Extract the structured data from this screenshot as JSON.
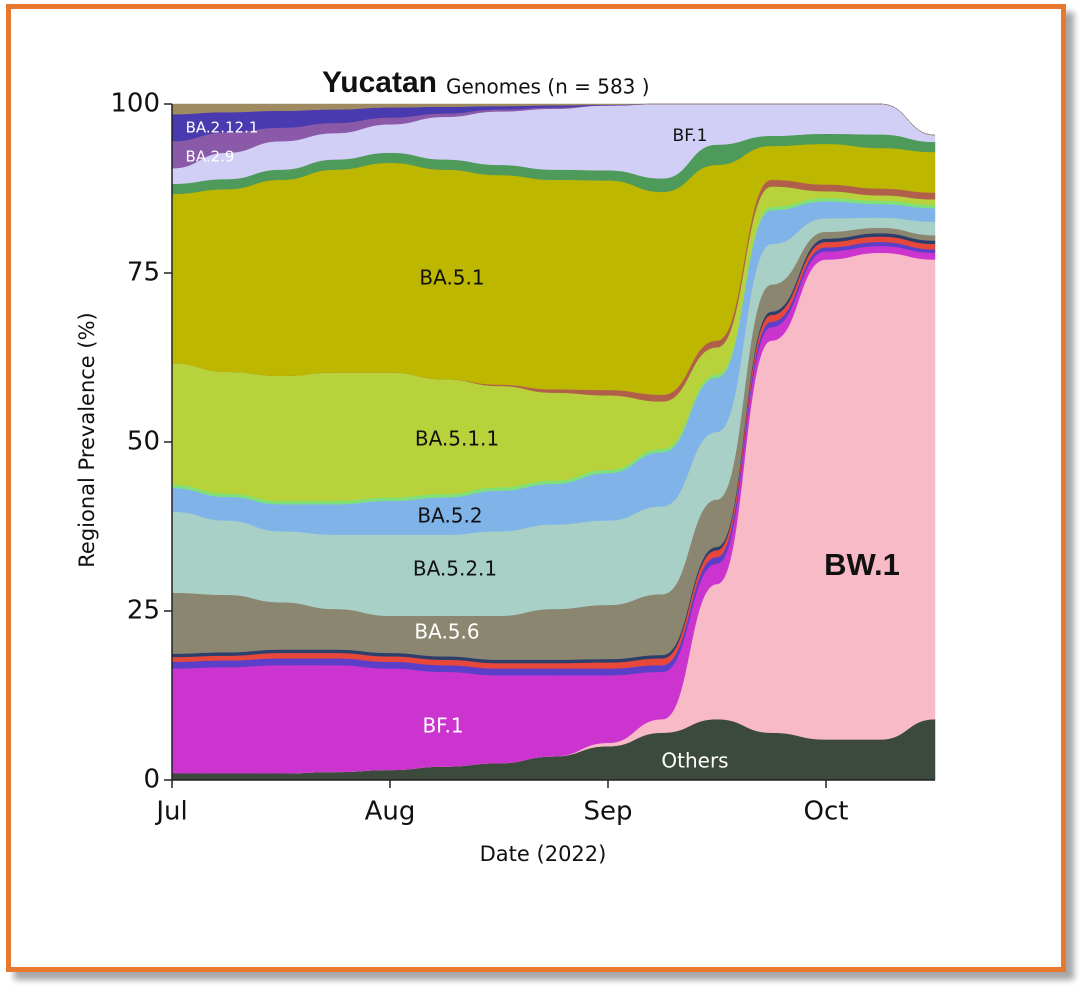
{
  "chart_data": {
    "type": "area",
    "stacked": true,
    "title": "Yucatan",
    "subtitle": "Genomes (n = 583 )",
    "x_label": "Date (2022)",
    "y_label": "Regional Prevalence (%)",
    "categories": [
      "Jul",
      null,
      null,
      null,
      "Aug",
      null,
      null,
      null,
      "Sep",
      null,
      null,
      null,
      "Oct",
      null,
      null
    ],
    "ylim": [
      0,
      100
    ],
    "yticks": [
      0,
      25,
      50,
      75,
      100
    ],
    "grid": false,
    "series": [
      {
        "name": "Others",
        "color": "#3b4a3d",
        "values": [
          1,
          1,
          1,
          1.2,
          1.5,
          2,
          2.5,
          3.5,
          5,
          7,
          9,
          7,
          6,
          6,
          9
        ]
      },
      {
        "name": "BW.1",
        "color": "#f8bac7",
        "values": [
          0,
          0,
          0,
          0,
          0,
          0,
          0,
          0,
          0.5,
          2,
          20,
          58,
          71,
          72,
          68
        ]
      },
      {
        "name": "BF.1",
        "color": "#cc34cf",
        "values": [
          15.5,
          15.7,
          16,
          15.8,
          15,
          14,
          13,
          12,
          10,
          7,
          3,
          2,
          1.2,
          1,
          1
        ]
      },
      {
        "color": "#5b3fc8",
        "values": [
          1,
          1,
          1,
          1,
          1,
          1,
          1,
          1,
          1,
          1,
          1,
          0.8,
          0.6,
          0.6,
          0.5
        ]
      },
      {
        "color": "#e8483a",
        "values": [
          0.7,
          0.7,
          0.8,
          0.8,
          0.8,
          0.8,
          0.8,
          0.8,
          0.9,
          1,
          1,
          1,
          0.8,
          0.8,
          0.8
        ]
      },
      {
        "color": "#2c3e6b",
        "values": [
          0.5,
          0.5,
          0.5,
          0.5,
          0.5,
          0.5,
          0.5,
          0.5,
          0.5,
          0.5,
          0.5,
          0.5,
          0.5,
          0.5,
          0.5
        ]
      },
      {
        "name": "BA.5.6",
        "color": "#8b8670",
        "values": [
          9,
          8.5,
          7,
          6,
          5.5,
          6,
          6.5,
          7.5,
          8,
          9,
          7,
          4,
          1,
          0.8,
          0.8
        ]
      },
      {
        "name": "BA.5.2.1",
        "color": "#a9d0c7",
        "values": [
          12,
          11,
          10.5,
          11,
          12,
          12,
          12.5,
          12.5,
          12.5,
          13,
          10,
          6,
          2,
          1.5,
          2
        ]
      },
      {
        "name": "BA.5.2",
        "color": "#80b3e8",
        "values": [
          3.5,
          3.5,
          4,
          4.5,
          5,
          5.5,
          6,
          6,
          7,
          8,
          8,
          5,
          2.5,
          2,
          2
        ]
      },
      {
        "color": "#7fe07a",
        "values": [
          0.5,
          0.5,
          0.5,
          0.5,
          0.5,
          0.5,
          0.5,
          0.5,
          0.5,
          0.5,
          0.5,
          0.5,
          0.5,
          0.5,
          0.5
        ]
      },
      {
        "name": "BA.5.1.1",
        "color": "#b7d23b",
        "values": [
          18,
          18,
          18.5,
          19,
          18.5,
          17,
          15,
          13,
          11,
          7,
          4,
          3,
          1,
          0.8,
          0.8
        ]
      },
      {
        "color": "#b0604a",
        "values": [
          0,
          0,
          0,
          0,
          0,
          0,
          0.2,
          0.5,
          0.8,
          1,
          1,
          1,
          1,
          1,
          1
        ]
      },
      {
        "name": "BA.5.1",
        "color": "#bdb700",
        "values": [
          25,
          27,
          29,
          30,
          31,
          31,
          31,
          31,
          31,
          30,
          26,
          5,
          6,
          6,
          6
        ]
      },
      {
        "color": "#4d9a5a",
        "values": [
          1.5,
          1.5,
          1.5,
          1.5,
          1.5,
          1.5,
          1.5,
          1.5,
          1.5,
          2,
          3,
          1.5,
          1.5,
          2,
          1.5
        ]
      },
      {
        "name": "BF.1",
        "color": "#d2cff6",
        "values": [
          2.3,
          3.9,
          4.2,
          3.9,
          4.2,
          6.3,
          7.9,
          9,
          9.6,
          11,
          6,
          4.7,
          4.4,
          4.5,
          1
        ]
      },
      {
        "name": "BA.2.9",
        "color": "#8a5aa8",
        "values": [
          4,
          3,
          2,
          1.5,
          1,
          0.5,
          0.3,
          0.2,
          0,
          0,
          0,
          0,
          0,
          0,
          0
        ]
      },
      {
        "name": "BA.2.12.1",
        "color": "#4a3ab0",
        "values": [
          4,
          3,
          2.5,
          2,
          1.5,
          1,
          0.5,
          0.3,
          0.1,
          0,
          0,
          0,
          0,
          0,
          0
        ]
      },
      {
        "color": "#a08a60",
        "values": [
          1.5,
          1.2,
          1,
          0.8,
          0.5,
          0.4,
          0.3,
          0.2,
          0.1,
          0,
          0,
          0,
          0,
          0,
          0
        ]
      }
    ]
  }
}
